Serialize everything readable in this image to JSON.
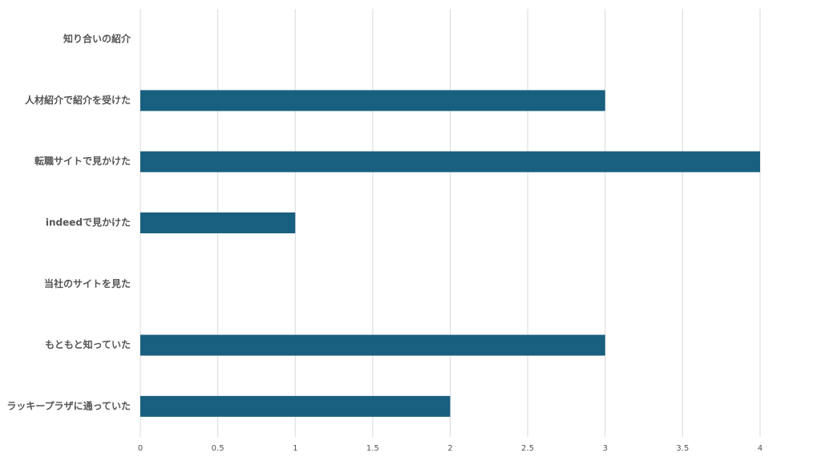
{
  "chart_data": {
    "type": "bar",
    "orientation": "horizontal",
    "categories": [
      "知り合いの紹介",
      "人材紹介で紹介を受けた",
      "転職サイトで見かけた",
      "indeedで見かけた",
      "当社のサイトを見た",
      "もともと知っていた",
      "ラッキープラザに通っていた"
    ],
    "values": [
      0,
      3,
      4,
      1,
      0,
      3,
      2
    ],
    "color": "#195f80",
    "xlim": [
      0,
      4
    ],
    "xticks": [
      0,
      0.5,
      1,
      1.5,
      2,
      2.5,
      3,
      3.5,
      4
    ],
    "grid": true
  }
}
